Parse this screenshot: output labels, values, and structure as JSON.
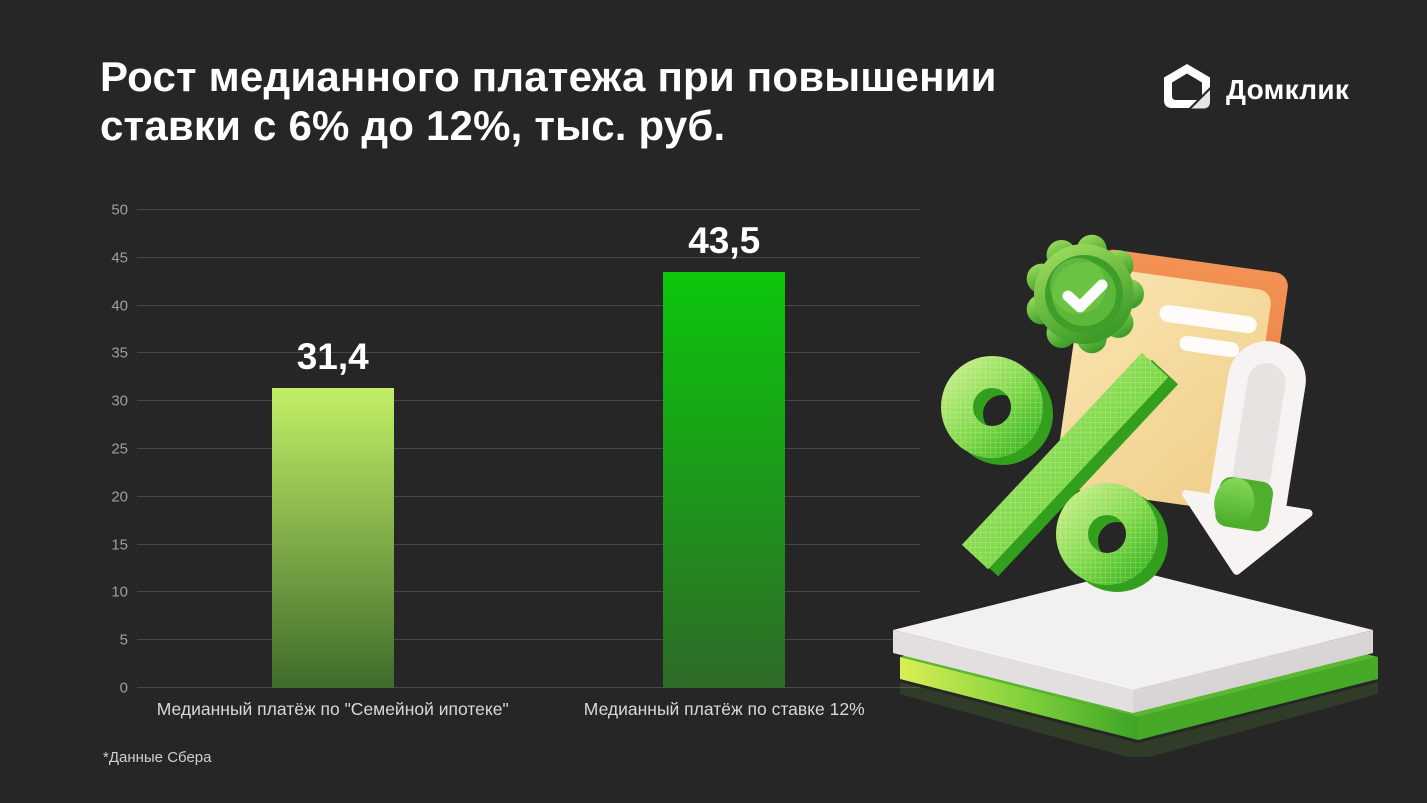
{
  "slide": {
    "title_lines": [
      "Рост медианного платежа при повышении",
      "ставки с 6% до 12%, тыс. руб."
    ],
    "footnote": "*Данные Сбера"
  },
  "logo": {
    "text": "Домклик",
    "icon": "domclick-house-icon"
  },
  "chart_data": {
    "type": "bar",
    "title": "Рост медианного платежа при повышении ставки с 6% до 12%, тыс. руб.",
    "unit": "тыс. руб.",
    "categories": [
      "Медианный платёж по \"Семейной ипотеке\"",
      "Медианный платёж по ставке 12%"
    ],
    "values": [
      31.4,
      43.5
    ],
    "value_labels": [
      "31,4",
      "43,5"
    ],
    "xlabel": "",
    "ylabel": "",
    "ylim": [
      0,
      50
    ],
    "yticks": [
      0,
      5,
      10,
      15,
      20,
      25,
      30,
      35,
      40,
      45,
      50
    ],
    "grid": true,
    "legend": "none",
    "bar_gradients": [
      {
        "top": "#c3ef66",
        "bottom": "#3f6b2b"
      },
      {
        "top": "#0cc70c",
        "bottom": "#2e6b28"
      }
    ]
  },
  "illustration": {
    "icons": [
      "check-badge-icon",
      "mortgage-document-icon",
      "percent-3d-icon",
      "down-arrow-icon",
      "platform-stack"
    ],
    "accent_green": "#4db52c",
    "accent_orange": "#ef8a4e"
  },
  "colors": {
    "background": "#262626",
    "gridline": "#474747",
    "tick_label": "#9f9f9f",
    "category_label": "#d8d8d8",
    "title": "#ffffff",
    "value_label": "#ffffff"
  }
}
